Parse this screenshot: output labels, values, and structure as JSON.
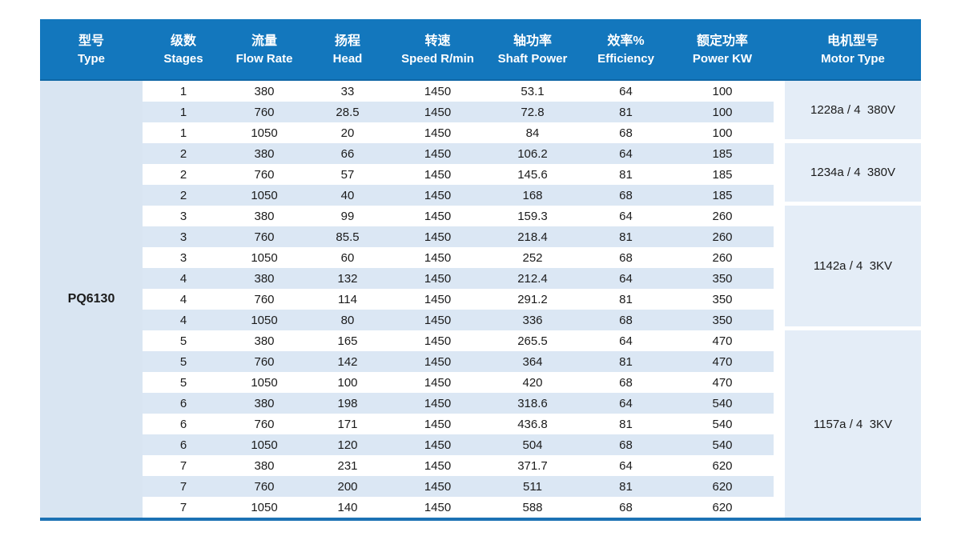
{
  "table": {
    "columns": [
      {
        "zh": "型号",
        "en": "Type"
      },
      {
        "zh": "级数",
        "en": "Stages"
      },
      {
        "zh": "流量",
        "en": "Flow Rate"
      },
      {
        "zh": "扬程",
        "en": "Head"
      },
      {
        "zh": "转速",
        "en": "Speed R/min"
      },
      {
        "zh": "轴功率",
        "en": "Shaft Power"
      },
      {
        "zh": "效率%",
        "en": "Efficiency"
      },
      {
        "zh": "额定功率",
        "en": "Power KW"
      },
      {
        "zh": "电机型号",
        "en": "Motor Type"
      }
    ],
    "type_label": "PQ6130",
    "rows": [
      [
        "1",
        "380",
        "33",
        "1450",
        "53.1",
        "64",
        "100"
      ],
      [
        "1",
        "760",
        "28.5",
        "1450",
        "72.8",
        "81",
        "100"
      ],
      [
        "1",
        "1050",
        "20",
        "1450",
        "84",
        "68",
        "100"
      ],
      [
        "2",
        "380",
        "66",
        "1450",
        "106.2",
        "64",
        "185"
      ],
      [
        "2",
        "760",
        "57",
        "1450",
        "145.6",
        "81",
        "185"
      ],
      [
        "2",
        "1050",
        "40",
        "1450",
        "168",
        "68",
        "185"
      ],
      [
        "3",
        "380",
        "99",
        "1450",
        "159.3",
        "64",
        "260"
      ],
      [
        "3",
        "760",
        "85.5",
        "1450",
        "218.4",
        "81",
        "260"
      ],
      [
        "3",
        "1050",
        "60",
        "1450",
        "252",
        "68",
        "260"
      ],
      [
        "4",
        "380",
        "132",
        "1450",
        "212.4",
        "64",
        "350"
      ],
      [
        "4",
        "760",
        "114",
        "1450",
        "291.2",
        "81",
        "350"
      ],
      [
        "4",
        "1050",
        "80",
        "1450",
        "336",
        "68",
        "350"
      ],
      [
        "5",
        "380",
        "165",
        "1450",
        "265.5",
        "64",
        "470"
      ],
      [
        "5",
        "760",
        "142",
        "1450",
        "364",
        "81",
        "470"
      ],
      [
        "5",
        "1050",
        "100",
        "1450",
        "420",
        "68",
        "470"
      ],
      [
        "6",
        "380",
        "198",
        "1450",
        "318.6",
        "64",
        "540"
      ],
      [
        "6",
        "760",
        "171",
        "1450",
        "436.8",
        "81",
        "540"
      ],
      [
        "6",
        "1050",
        "120",
        "1450",
        "504",
        "68",
        "540"
      ],
      [
        "7",
        "380",
        "231",
        "1450",
        "371.7",
        "64",
        "620"
      ],
      [
        "7",
        "760",
        "200",
        "1450",
        "511",
        "81",
        "620"
      ],
      [
        "7",
        "1050",
        "140",
        "1450",
        "588",
        "68",
        "620"
      ]
    ],
    "motor_groups": [
      {
        "label": "1228a / 4  380V",
        "row_span": 3
      },
      {
        "label": "1234a / 4  380V",
        "row_span": 3
      },
      {
        "label": "1142a / 4  3KV",
        "row_span": 6
      },
      {
        "label": "1157a / 4  3KV",
        "row_span": 9
      }
    ],
    "colors": {
      "header_bg": "#1377bd",
      "header_border": "#0f67a6",
      "stripe": "#dbe7f4",
      "type_column_bg": "#d9e5f2",
      "motor_block_bg": "#e4edf7",
      "bottom_bar": "#1c72b4"
    }
  }
}
